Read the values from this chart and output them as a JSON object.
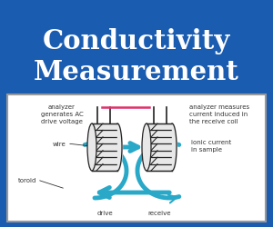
{
  "title_line1": "Conductivity",
  "title_line2": "Measurement",
  "title_bg_color": "#1a5cb0",
  "title_text_color": "#ffffff",
  "diagram_bg_color": "#f5f5f5",
  "diagram_border_color": "#999999",
  "toroid_color": "#29a8c8",
  "wire_color": "#222222",
  "text_color": "#333333",
  "pink_line_color": "#e0306a",
  "label_analyzer_left": "analyzer\ngenerates AC\ndrive voltage",
  "label_wire": "wire",
  "label_toroid": "toroid",
  "label_drive": "drive",
  "label_receive": "receive",
  "label_analyzer_right": "analyzer measures\ncurrent induced in\nthe receive coil",
  "label_ionic": "ionic current\nin sample",
  "figw": 3.0,
  "figh": 2.51,
  "dpi": 100
}
